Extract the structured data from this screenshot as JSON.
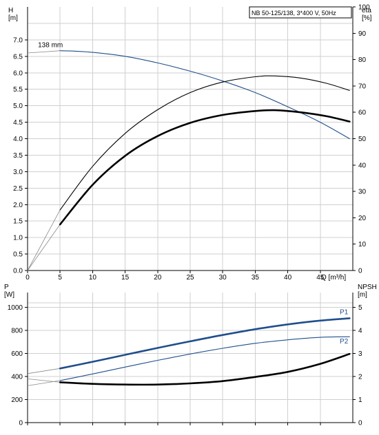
{
  "title_box": "NB 50-125/138, 3*400 V, 50Hz",
  "colors": {
    "blue": "#1f4e8c",
    "black": "#000000",
    "grid": "#cfcfcf",
    "thin_line": "#4a4a4a"
  },
  "chart_data": [
    {
      "type": "line",
      "title": "NB 50-125/138, 3*400 V, 50Hz",
      "xlabel": "Q [m³/h]",
      "ylabel_left": "H\n[m]",
      "ylabel_right": "eta\n[%]",
      "xlim": [
        0,
        50
      ],
      "ylim_left": [
        0,
        8
      ],
      "ylim_right": [
        0,
        100
      ],
      "x_ticks": [
        0,
        5,
        10,
        15,
        20,
        25,
        30,
        35,
        40,
        45
      ],
      "x_tick_labels": [
        "0",
        "5",
        "10",
        "15",
        "20",
        "25",
        "30",
        "35",
        "40",
        "45"
      ],
      "y_ticks_left": [
        "0.0",
        "0.5",
        "1.0",
        "1.5",
        "2.0",
        "2.5",
        "3.0",
        "3.5",
        "4.0",
        "4.5",
        "5.0",
        "5.5",
        "6.0",
        "6.5",
        "7.0"
      ],
      "y_ticks_right": [
        "0",
        "10",
        "20",
        "30",
        "40",
        "50",
        "60",
        "70",
        "80",
        "90",
        "100"
      ],
      "grid": true,
      "annotations": [
        {
          "text": "138 mm",
          "x": 5,
          "y": 6.72
        }
      ],
      "series": [
        {
          "axis": "left",
          "color": "#1f4e8c",
          "extrapolated_x": [
            0,
            5
          ],
          "extrapolated_y": [
            6.6,
            6.67
          ],
          "x": [
            5,
            7,
            10,
            15,
            20,
            25,
            30,
            35,
            40,
            45,
            49.5
          ],
          "y": [
            6.67,
            6.66,
            6.62,
            6.5,
            6.3,
            6.05,
            5.75,
            5.4,
            4.97,
            4.5,
            4.0
          ]
        },
        {
          "axis": "right",
          "color": "#000000",
          "extrapolated_x": [
            0,
            5
          ],
          "extrapolated_y": [
            0,
            23
          ],
          "x": [
            5,
            10,
            15,
            20,
            25,
            30,
            35,
            38,
            42,
            46,
            49.5
          ],
          "y": [
            23,
            39.5,
            52,
            61,
            67.5,
            71.5,
            73.5,
            73.8,
            73,
            71,
            68.3
          ]
        },
        {
          "axis": "right",
          "color": "#000000",
          "bold": true,
          "extrapolated_x": [
            0,
            5
          ],
          "extrapolated_y": [
            0,
            17.5
          ],
          "x": [
            5,
            10,
            15,
            20,
            25,
            30,
            35,
            38,
            42,
            46,
            49.5
          ],
          "y": [
            17.5,
            32.5,
            43.5,
            51,
            56,
            59,
            60.5,
            60.8,
            60,
            58.5,
            56.5
          ]
        }
      ]
    },
    {
      "type": "line",
      "xlabel": "",
      "ylabel_left": "P\n[W]",
      "ylabel_right": "NPSH\n[m]",
      "xlim": [
        0,
        50
      ],
      "ylim_left": [
        0,
        1200
      ],
      "ylim_right": [
        0,
        6
      ],
      "y_ticks_left": [
        "0",
        "200",
        "400",
        "600",
        "800",
        "1000"
      ],
      "y_ticks_right": [
        "0",
        "1",
        "2",
        "3",
        "4",
        "5"
      ],
      "grid": true,
      "series": [
        {
          "name": "P1",
          "axis": "left",
          "color": "#1f4e8c",
          "bold": true,
          "extrapolated_x": [
            0,
            5
          ],
          "extrapolated_y": [
            425,
            470
          ],
          "x": [
            5,
            10,
            15,
            20,
            25,
            30,
            35,
            40,
            45,
            49.5
          ],
          "y": [
            470,
            528,
            588,
            648,
            705,
            760,
            810,
            852,
            885,
            905
          ]
        },
        {
          "name": "P2",
          "axis": "left",
          "color": "#1f4e8c",
          "extrapolated_x": [
            0,
            5
          ],
          "extrapolated_y": [
            320,
            365
          ],
          "x": [
            5,
            10,
            15,
            20,
            25,
            30,
            35,
            40,
            45,
            49.5
          ],
          "y": [
            365,
            422,
            482,
            540,
            595,
            645,
            688,
            718,
            740,
            745
          ]
        },
        {
          "name": "NPSH",
          "axis": "right",
          "color": "#000000",
          "bold": true,
          "extrapolated_x": [
            0,
            5
          ],
          "extrapolated_y": [
            1.9,
            1.75
          ],
          "x": [
            5,
            10,
            15,
            20,
            25,
            30,
            35,
            40,
            45,
            49.5
          ],
          "y": [
            1.75,
            1.68,
            1.65,
            1.65,
            1.7,
            1.8,
            1.98,
            2.2,
            2.55,
            2.98
          ]
        }
      ]
    }
  ]
}
